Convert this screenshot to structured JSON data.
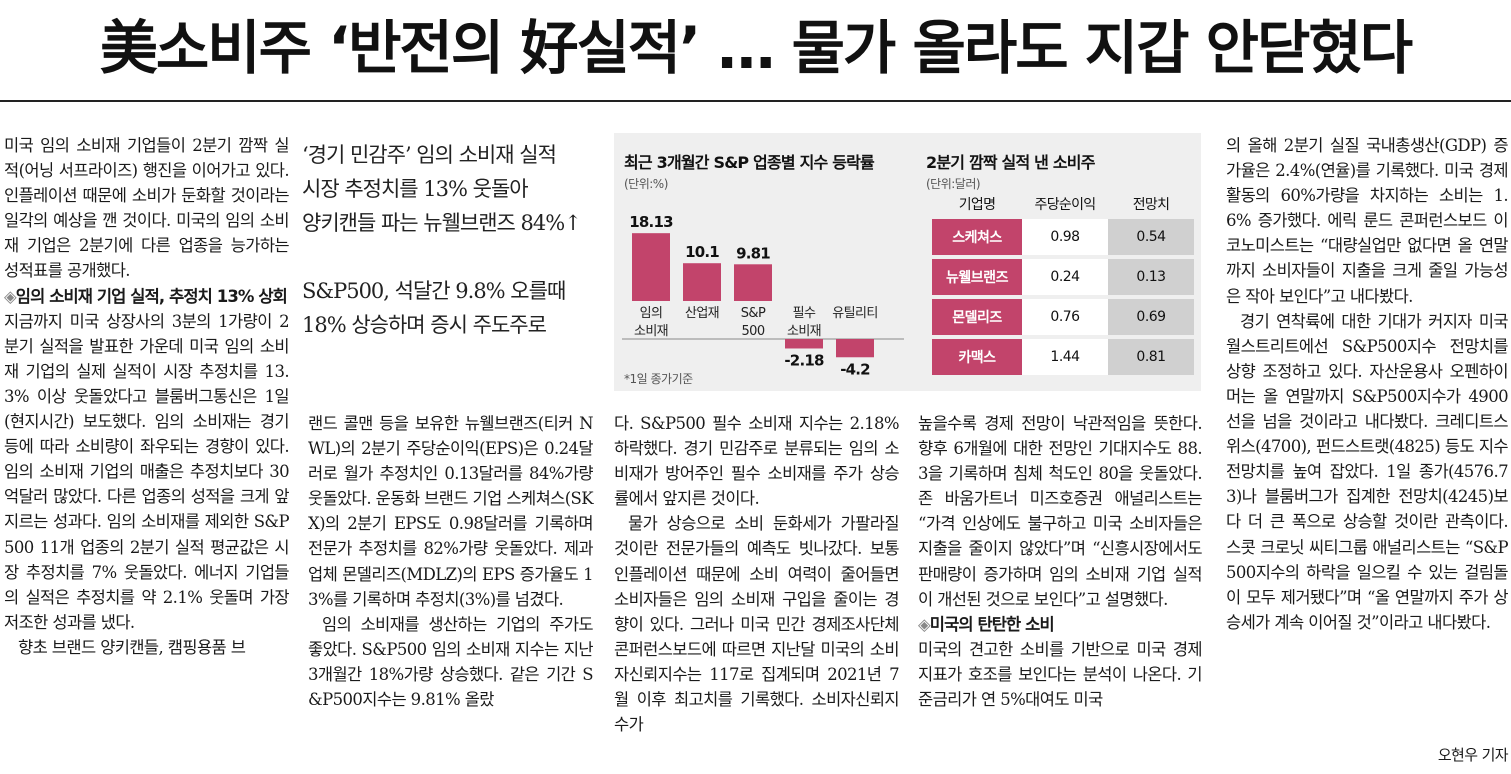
{
  "headline": "美소비주 ‘반전의 好실적’ … 물가 올라도 지갑 안닫혔다",
  "col1": {
    "p1": "미국 임의 소비재 기업들이 2분기 깜짝 실적(어닝 서프라이즈) 행진을 이어가고 있다. 인플레이션 때문에 소비가 둔화할 것이라는 일각의 예상을 깬 것이다. 미국의 임의 소비재 기업은 2분기에 다른 업종을 능가하는 성적표를 공개했다.",
    "sub_mark": "◈",
    "sub": "임의 소비재 기업 실적, 추정치 13% 상회",
    "p2": "지금까지 미국 상장사의 3분의 1가량이 2분기 실적을 발표한 가운데 미국 임의 소비재 기업의 실제 실적이 시장 추정치를 13.3% 이상 웃돌았다고 블룸버그통신은 1일(현지시간) 보도했다. 임의 소비재는 경기 등에 따라 소비량이 좌우되는 경향이 있다. 임의 소비재 기업의 매출은 추정치보다 30억달러 많았다. 다른 업종의 성적을 크게 앞지르는 성과다. 임의 소비재를 제외한 S&P500 11개 업종의 2분기 실적 평균값은 시장 추정치를 7% 웃돌았다. 에너지 기업들의 실적은 추정치를 약 2.1% 웃돌며 가장 저조한 성과를 냈다.",
    "p3": "향초 브랜드 양키캔들, 캠핑용품 브"
  },
  "deck": {
    "line1": "‘경기 민감주’ 임의 소비재 실적",
    "line2": "시장 추정치를 13% 웃돌아",
    "line3": "양키캔들 파는 뉴웰브랜즈 84%↑",
    "line4": "S&P500, 석달간 9.8% 오를때",
    "line5": "18% 상승하며 증시 주도주로"
  },
  "col2": {
    "p1": "랜드 콜맨 등을 보유한 뉴웰브랜즈(티커 NWL)의 2분기 주당순이익(EPS)은 0.24달러로 월가 추정치인 0.13달러를 84%가량 웃돌았다. 운동화 브랜드 기업 스케쳐스(SKX)의 2분기 EPS도 0.98달러를 기록하며 전문가 추정치를 82%가량 웃돌았다. 제과업체 몬델리즈(MDLZ)의 EPS 증가율도 13%를 기록하며 추정치(3%)를 넘겼다.",
    "p2": "임의 소비재를 생산하는 기업의 주가도 좋았다. S&P500 임의 소비재 지수는 지난 3개월간 18%가량 상승했다. 같은 기간 S&P500지수는 9.81% 올랐"
  },
  "col3": {
    "p1": "다. S&P500 필수 소비재 지수는 2.18% 하락했다. 경기 민감주로 분류되는 임의 소비재가 방어주인 필수 소비재를 주가 상승률에서 앞지른 것이다.",
    "p2": "물가 상승으로 소비 둔화세가 가팔라질 것이란 전문가들의 예측도 빗나갔다. 보통 인플레이션 때문에 소비 여력이 줄어들면 소비자들은 임의 소비재 구입을 줄이는 경향이 있다. 그러나 미국 민간 경제조사단체 콘퍼런스보드에 따르면 지난달 미국의 소비자신뢰지수는 117로 집계되며 2021년 7월 이후 최고치를 기록했다. 소비자신뢰지수가"
  },
  "col4": {
    "p1": "높을수록 경제 전망이 낙관적임을 뜻한다. 향후 6개월에 대한 전망인 기대지수도 88.3을 기록하며 침체 척도인 80을 웃돌았다. 존 바움가트너 미즈호증권 애널리스트는 “가격 인상에도 불구하고 미국 소비자들은 지출을 줄이지 않았다”며 “신흥시장에서도 판매량이 증가하며 임의 소비재 기업 실적이 개선된 것으로 보인다”고 설명했다.",
    "sub_mark": "◈",
    "sub": "미국의 탄탄한 소비",
    "p2": "미국의 견고한 소비를 기반으로 미국 경제 지표가 호조를 보인다는 분석이 나온다. 기준금리가 연 5%대여도 미국"
  },
  "col5": {
    "p1": "의 올해 2분기 실질 국내총생산(GDP) 증가율은 2.4%(연율)를 기록했다. 미국 경제활동의 60%가량을 차지하는 소비는 1.6% 증가했다. 에릭 룬드 콘퍼런스보드 이코노미스트는 “대량실업만 없다면 올 연말까지 소비자들이 지출을 크게 줄일 가능성은 작아 보인다”고 내다봤다.",
    "p2": "경기 연착륙에 대한 기대가 커지자 미국 월스트리트에선 S&P500지수 전망치를 상향 조정하고 있다. 자산운용사 오펜하이머는 올 연말까지 S&P500지수가 4900선을 넘을 것이라고 내다봤다. 크레디트스위스(4700), 펀드스트랫(4825) 등도 지수 전망치를 높여 잡았다. 1일 종가(4576.73)나 블룸버그가 집계한 전망치(4245)보다 더 큰 폭으로 상승할 것이란 관측이다. 스콧 크로닛 씨티그룹 애널리스트는 “S&P500지수의 하락을 일으킬 수 있는 걸림돌이 모두 제거됐다”며 “올 연말까지 주가 상승세가 계속 이어질 것”이라고 내다봤다.",
    "byline": "오현우 기자"
  },
  "graphic": {
    "chart_title": "최근 3개월간 S&P 업종별 지수 등락률",
    "chart_unit": "(단위:%)",
    "chart_note": "*1일 종가기준",
    "table_title": "2분기 깜짝 실적 낸 소비주",
    "table_unit": "(단위:달러)",
    "table_headers": [
      "기업명",
      "주당순이익",
      "전망치"
    ],
    "table_rows": [
      {
        "name": "스케쳐스",
        "eps": "0.98",
        "est": "0.54"
      },
      {
        "name": "뉴웰브랜즈",
        "eps": "0.24",
        "est": "0.13"
      },
      {
        "name": "몬델리즈",
        "eps": "0.76",
        "est": "0.69"
      },
      {
        "name": "카맥스",
        "eps": "1.44",
        "est": "0.81"
      }
    ],
    "bar_color": "#c2446b"
  },
  "chart_data": {
    "type": "bar",
    "title": "최근 3개월간 S&P 업종별 지수 등락률",
    "ylabel": "(단위:%)",
    "categories": [
      [
        "임의",
        "소비재"
      ],
      [
        "산업재"
      ],
      [
        "S&P",
        "500"
      ],
      [
        "필수",
        "소비재"
      ],
      [
        "유틸리티"
      ]
    ],
    "values": [
      18.13,
      10.1,
      9.81,
      -2.18,
      -4.2
    ],
    "value_labels": [
      "18.13",
      "10.1",
      "9.81",
      "-2.18",
      "-4.2"
    ]
  }
}
